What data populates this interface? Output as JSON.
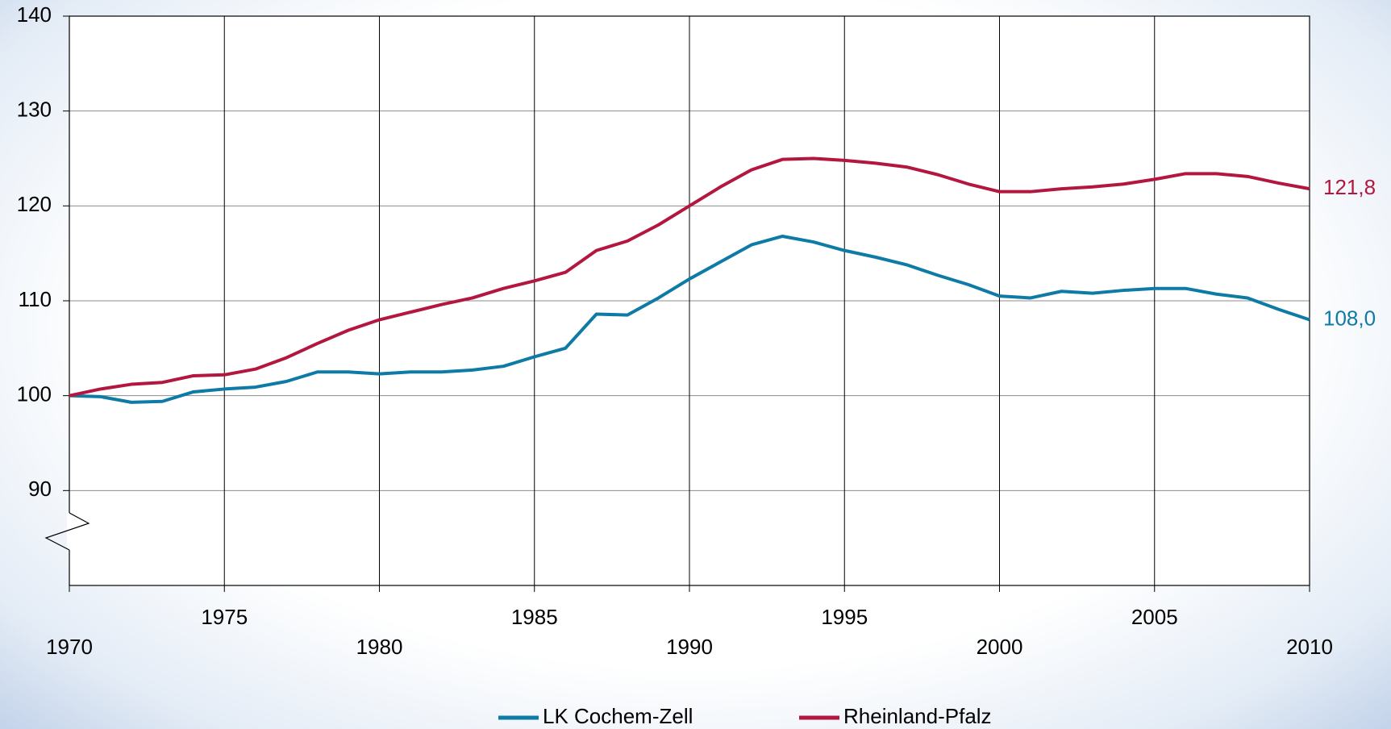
{
  "chart_data": {
    "type": "line",
    "x": [
      1970,
      1971,
      1972,
      1973,
      1974,
      1975,
      1976,
      1977,
      1978,
      1979,
      1980,
      1981,
      1982,
      1983,
      1984,
      1985,
      1986,
      1987,
      1988,
      1989,
      1990,
      1991,
      1992,
      1993,
      1994,
      1995,
      1996,
      1997,
      1998,
      1999,
      2000,
      2001,
      2002,
      2003,
      2004,
      2005,
      2006,
      2007,
      2008,
      2009,
      2010
    ],
    "series": [
      {
        "name": "LK Cochem-Zell",
        "color": "#0e7aa6",
        "values": [
          100,
          99.9,
          99.3,
          99.4,
          100.4,
          100.7,
          100.9,
          101.5,
          102.5,
          102.5,
          102.3,
          102.5,
          102.5,
          102.7,
          103.1,
          104.1,
          105.0,
          108.6,
          108.5,
          110.3,
          112.3,
          114.1,
          115.9,
          116.8,
          116.2,
          115.3,
          114.6,
          113.8,
          112.7,
          111.7,
          110.5,
          110.3,
          111.0,
          110.8,
          111.1,
          111.3,
          111.3,
          110.7,
          110.3,
          109.1,
          108.0
        ],
        "value_labels": [
          null,
          null,
          null,
          null,
          null,
          null,
          null,
          null,
          null,
          null,
          null,
          null,
          null,
          null,
          null,
          null,
          null,
          null,
          null,
          null,
          null,
          null,
          null,
          null,
          null,
          null,
          null,
          null,
          null,
          null,
          null,
          null,
          null,
          null,
          null,
          null,
          null,
          null,
          null,
          null,
          "108,0"
        ]
      },
      {
        "name": "Rheinland-Pfalz",
        "color": "#b3173f",
        "values": [
          100,
          100.7,
          101.2,
          101.4,
          102.1,
          102.2,
          102.8,
          104.0,
          105.5,
          106.9,
          108.0,
          108.8,
          109.6,
          110.3,
          111.3,
          112.1,
          113.0,
          115.3,
          116.3,
          118.0,
          120.0,
          122.0,
          123.8,
          124.9,
          125.0,
          124.8,
          124.5,
          124.1,
          123.3,
          122.3,
          121.5,
          121.5,
          121.8,
          122.0,
          122.3,
          122.8,
          123.4,
          123.4,
          123.1,
          122.4,
          121.8
        ],
        "value_labels": [
          null,
          null,
          null,
          null,
          null,
          null,
          null,
          null,
          null,
          null,
          null,
          null,
          null,
          null,
          null,
          null,
          null,
          null,
          null,
          null,
          null,
          null,
          null,
          null,
          null,
          null,
          null,
          null,
          null,
          null,
          null,
          null,
          null,
          null,
          null,
          null,
          null,
          null,
          null,
          null,
          "121,8"
        ]
      }
    ],
    "xlim": [
      1970,
      2010
    ],
    "xticks": [
      1970,
      1975,
      1980,
      1985,
      1990,
      1995,
      2000,
      2005,
      2010
    ],
    "ylim": [
      80,
      140
    ],
    "yticks": [
      90,
      100,
      110,
      120,
      130,
      140
    ],
    "grid": true
  }
}
